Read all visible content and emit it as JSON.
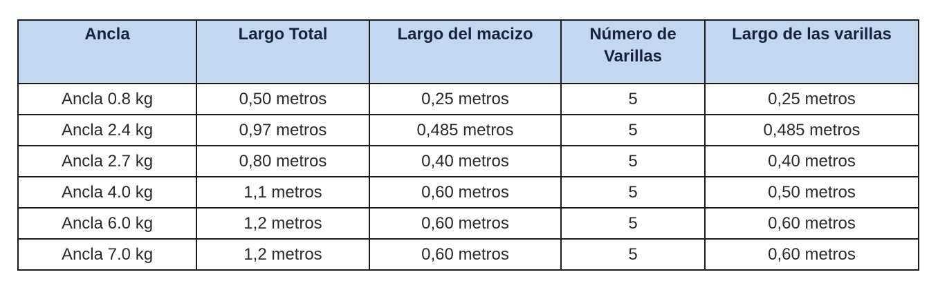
{
  "table": {
    "header_color": "#c3d8ef",
    "columns": [
      "Ancla",
      "Largo Total",
      "Largo del macizo",
      "Número de Varillas",
      "Largo de las varillas"
    ],
    "rows": [
      [
        "Ancla 0.8 kg",
        "0,50 metros",
        "0,25 metros",
        "5",
        "0,25 metros"
      ],
      [
        "Ancla 2.4 kg",
        "0,97 metros",
        "0,485 metros",
        "5",
        "0,485 metros"
      ],
      [
        "Ancla 2.7 kg",
        "0,80 metros",
        "0,40 metros",
        "5",
        "0,40 metros"
      ],
      [
        "Ancla 4.0 kg",
        "1,1 metros",
        "0,60 metros",
        "5",
        "0,50 metros"
      ],
      [
        "Ancla 6.0 kg",
        "1,2 metros",
        "0,60 metros",
        "5",
        "0,60 metros"
      ],
      [
        "Ancla 7.0 kg",
        "1,2 metros",
        "0,60 metros",
        "5",
        "0,60 metros"
      ]
    ]
  }
}
